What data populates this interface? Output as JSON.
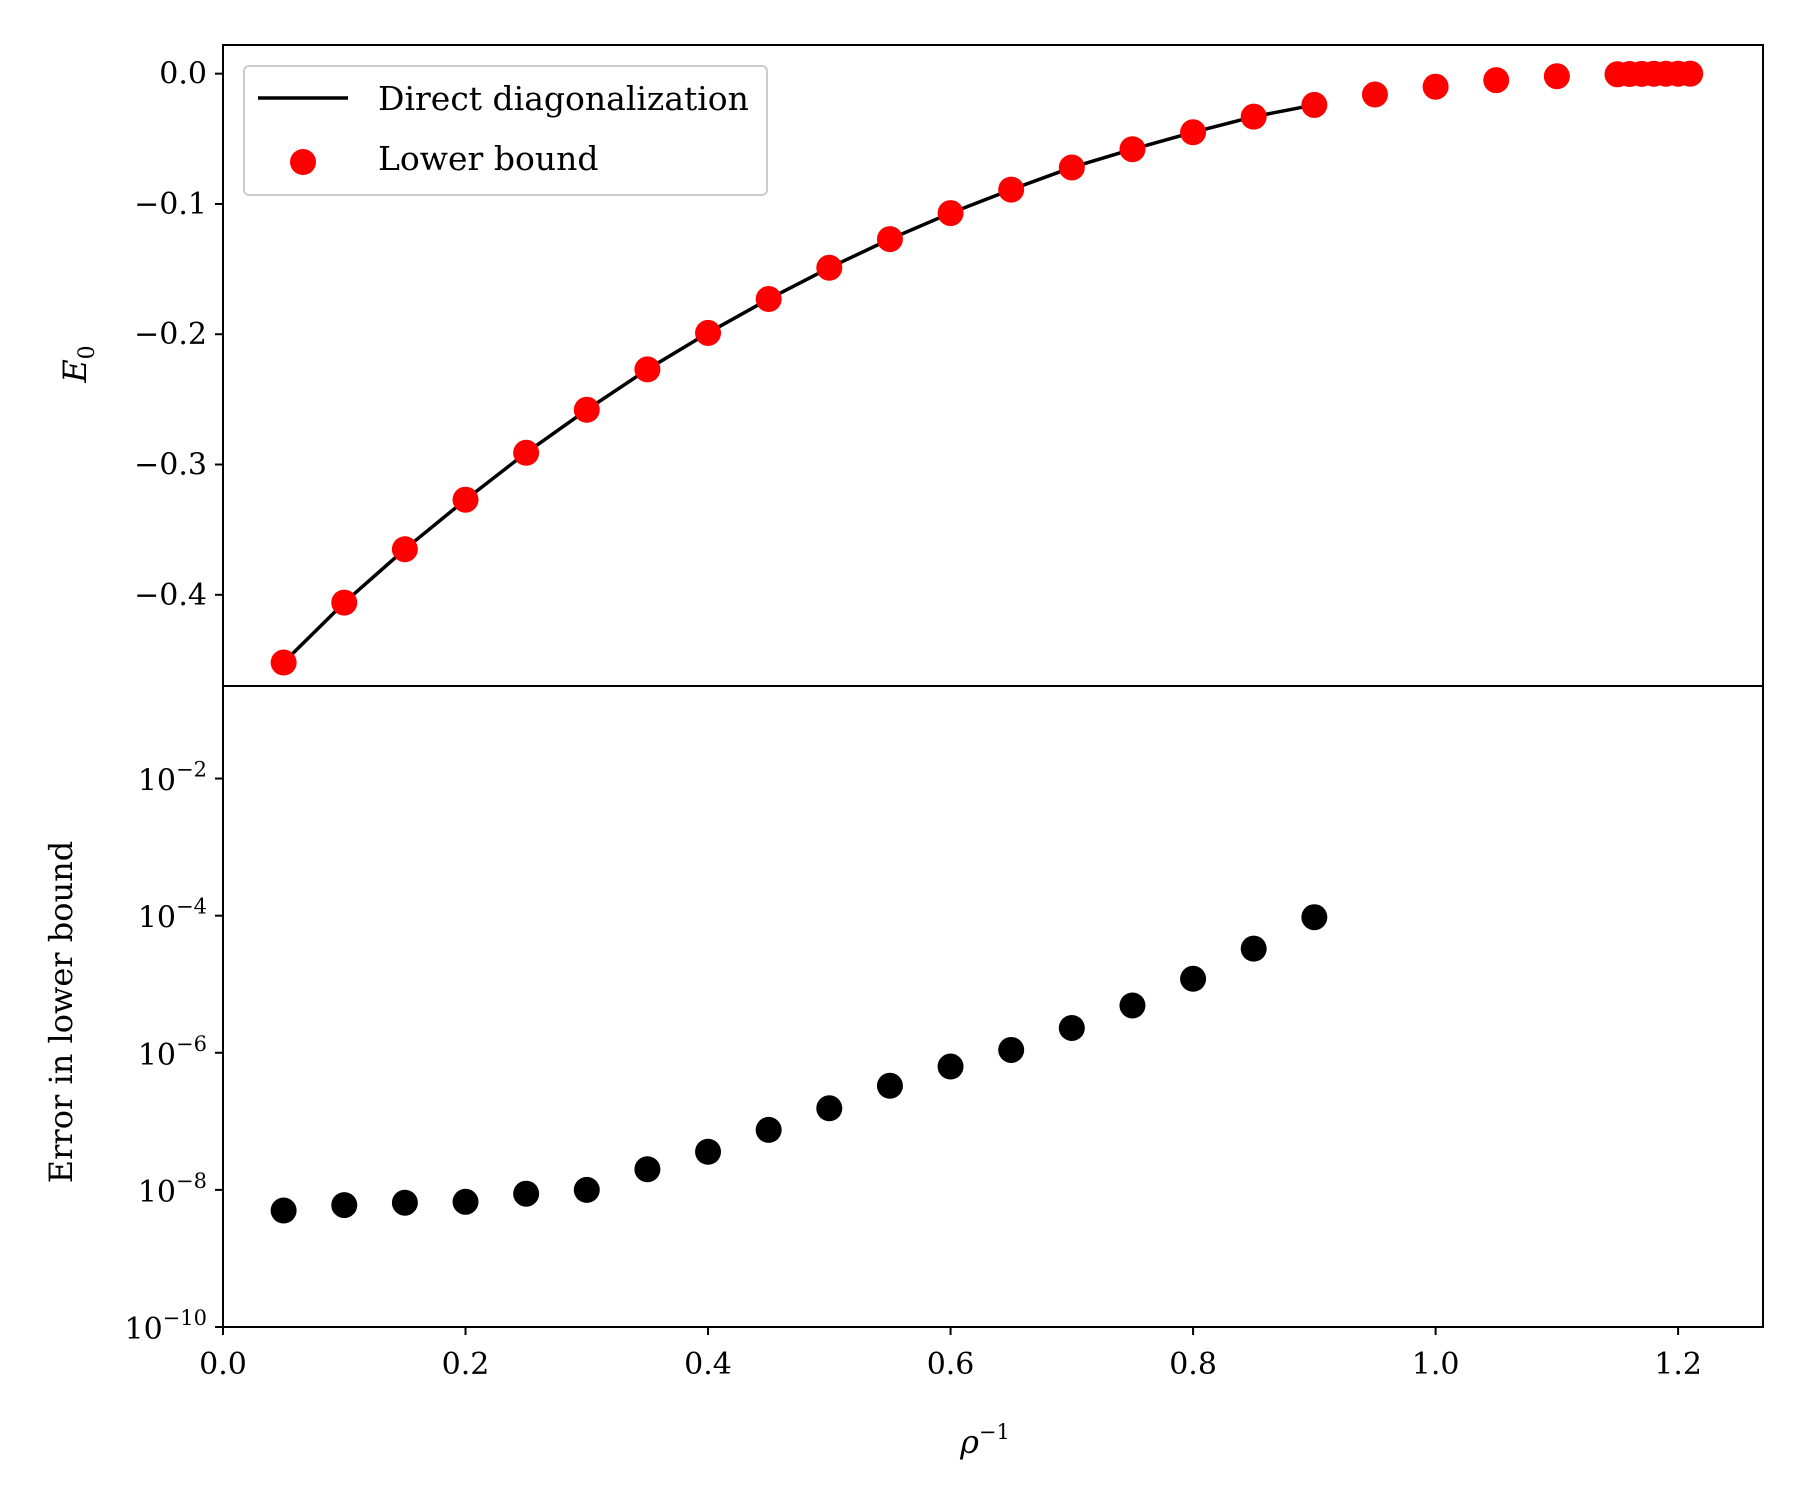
{
  "chart_data": [
    {
      "type": "line+scatter",
      "panel": "top",
      "ylabel": "E",
      "ylabel_subscript": "0",
      "xlim": [
        0.0,
        1.27
      ],
      "ylim": [
        -0.47,
        0.022
      ],
      "yticks": [
        {
          "value": 0.0,
          "label": "0.0"
        },
        {
          "value": -0.1,
          "label": "−0.1"
        },
        {
          "value": -0.2,
          "label": "−0.2"
        },
        {
          "value": -0.3,
          "label": "−0.3"
        },
        {
          "value": -0.4,
          "label": "−0.4"
        }
      ],
      "legend": {
        "placement": "top-left",
        "entries": [
          {
            "label": "Direct diagonalization",
            "kind": "line",
            "color": "#000000"
          },
          {
            "label": "Lower bound",
            "kind": "marker",
            "color": "#ff0000"
          }
        ]
      },
      "series": [
        {
          "name": "Direct diagonalization",
          "kind": "line",
          "color": "#000000",
          "x": [
            0.05,
            0.1,
            0.15,
            0.2,
            0.25,
            0.3,
            0.35,
            0.4,
            0.45,
            0.5,
            0.55,
            0.6,
            0.65,
            0.7,
            0.75,
            0.8,
            0.85,
            0.9
          ],
          "y": [
            -0.452,
            -0.406,
            -0.365,
            -0.327,
            -0.291,
            -0.258,
            -0.227,
            -0.199,
            -0.173,
            -0.149,
            -0.127,
            -0.107,
            -0.089,
            -0.072,
            -0.058,
            -0.045,
            -0.033,
            -0.024
          ]
        },
        {
          "name": "Lower bound",
          "kind": "scatter",
          "color": "#ff0000",
          "x": [
            0.05,
            0.1,
            0.15,
            0.2,
            0.25,
            0.3,
            0.35,
            0.4,
            0.45,
            0.5,
            0.55,
            0.6,
            0.65,
            0.7,
            0.75,
            0.8,
            0.85,
            0.9,
            0.95,
            1.0,
            1.05,
            1.1,
            1.15,
            1.16,
            1.17,
            1.18,
            1.19,
            1.2,
            1.21
          ],
          "y": [
            -0.452,
            -0.406,
            -0.365,
            -0.327,
            -0.291,
            -0.258,
            -0.227,
            -0.199,
            -0.173,
            -0.149,
            -0.127,
            -0.107,
            -0.089,
            -0.072,
            -0.058,
            -0.045,
            -0.033,
            -0.024,
            -0.016,
            -0.01,
            -0.005,
            -0.002,
            -0.0005,
            -0.0003,
            -0.0002,
            -0.0001,
            -5e-05,
            -2e-05,
            -1e-05
          ]
        }
      ]
    },
    {
      "type": "scatter",
      "panel": "bottom",
      "yscale": "log",
      "ylabel": "Error in lower bound",
      "xlabel": "ρ",
      "xlabel_superscript": "−1",
      "xlim": [
        0.0,
        1.27
      ],
      "ylim_log10": [
        -10,
        -0.65
      ],
      "xticks": [
        {
          "value": 0.0,
          "label": "0.0"
        },
        {
          "value": 0.2,
          "label": "0.2"
        },
        {
          "value": 0.4,
          "label": "0.4"
        },
        {
          "value": 0.6,
          "label": "0.6"
        },
        {
          "value": 0.8,
          "label": "0.8"
        },
        {
          "value": 1.0,
          "label": "1.0"
        },
        {
          "value": 1.2,
          "label": "1.2"
        }
      ],
      "yticks": [
        {
          "exp": -2,
          "base": "10",
          "sup": "−2"
        },
        {
          "exp": -4,
          "base": "10",
          "sup": "−4"
        },
        {
          "exp": -6,
          "base": "10",
          "sup": "−6"
        },
        {
          "exp": -8,
          "base": "10",
          "sup": "−8"
        },
        {
          "exp": -10,
          "base": "10",
          "sup": "−10"
        }
      ],
      "series": [
        {
          "name": "Error in lower bound",
          "kind": "scatter",
          "color": "#000000",
          "x": [
            0.05,
            0.1,
            0.15,
            0.2,
            0.25,
            0.3,
            0.35,
            0.4,
            0.45,
            0.5,
            0.55,
            0.6,
            0.65,
            0.7,
            0.75,
            0.8,
            0.85,
            0.9
          ],
          "y": [
            5e-09,
            6e-09,
            6.5e-09,
            6.7e-09,
            8.8e-09,
            1e-08,
            2e-08,
            3.6e-08,
            7.5e-08,
            1.55e-07,
            3.3e-07,
            6.3e-07,
            1.1e-06,
            2.3e-06,
            4.9e-06,
            1.2e-05,
            3.3e-05,
            9.5e-05
          ]
        }
      ]
    }
  ]
}
